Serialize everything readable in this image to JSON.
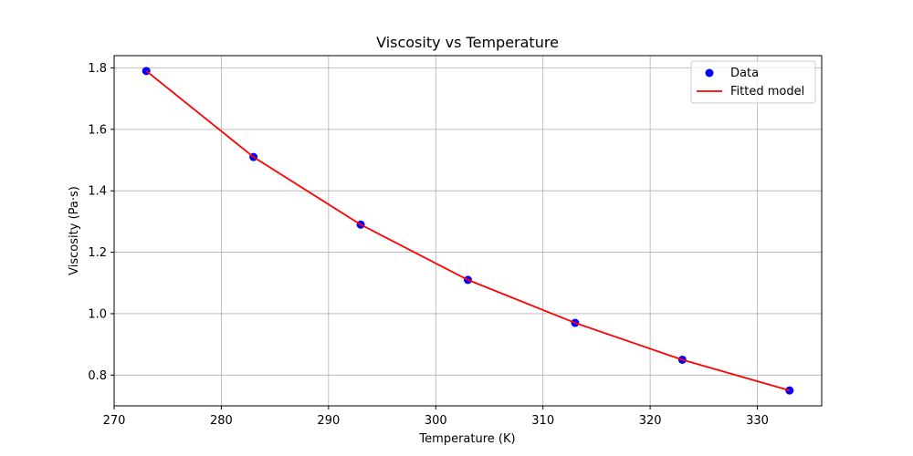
{
  "chart_data": {
    "type": "line",
    "title": "Viscosity vs Temperature",
    "xlabel": "Temperature (K)",
    "ylabel": "Viscosity (Pa·s)",
    "xlim": [
      270,
      336
    ],
    "ylim": [
      0.7,
      1.84
    ],
    "xticks": [
      270,
      280,
      290,
      300,
      310,
      320,
      330
    ],
    "yticks": [
      0.8,
      1.0,
      1.2,
      1.4,
      1.6,
      1.8
    ],
    "xtick_labels": [
      "270",
      "280",
      "290",
      "300",
      "310",
      "320",
      "330"
    ],
    "ytick_labels": [
      "0.8",
      "1.0",
      "1.2",
      "1.4",
      "1.6",
      "1.8"
    ],
    "grid": true,
    "legend_position": "top-right",
    "series": [
      {
        "name": "Data",
        "kind": "scatter",
        "color": "#0000ff",
        "x": [
          273,
          283,
          293,
          303,
          313,
          323,
          333
        ],
        "y": [
          1.79,
          1.51,
          1.29,
          1.11,
          0.97,
          0.85,
          0.75
        ]
      },
      {
        "name": "Fitted model",
        "kind": "line",
        "color": "#ff0000",
        "x": [
          273,
          283,
          293,
          303,
          313,
          323,
          333
        ],
        "y": [
          1.79,
          1.51,
          1.29,
          1.11,
          0.97,
          0.85,
          0.75
        ]
      }
    ]
  }
}
